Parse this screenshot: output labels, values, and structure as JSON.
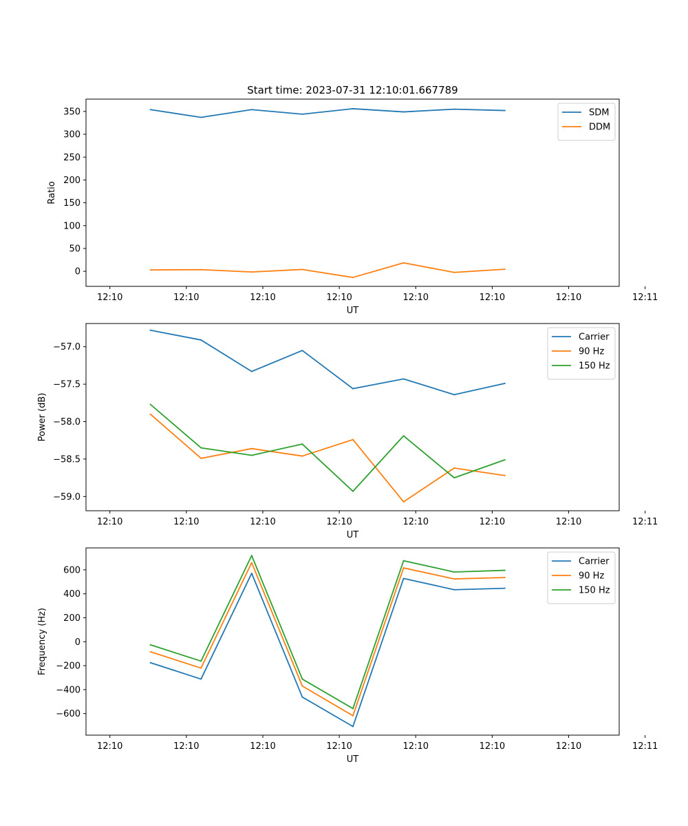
{
  "figure": {
    "title": "Start time: 2023-07-31 12:10:01.667789"
  },
  "chart_data": [
    {
      "type": "line",
      "title": "Start time: 2023-07-31 12:10:01.667789",
      "xlabel": "UT",
      "ylabel": "Ratio",
      "x": [
        1,
        2,
        3,
        4,
        5,
        6,
        7,
        8
      ],
      "xlim": [
        0,
        10
      ],
      "x_ticks": [
        0.2,
        1.71,
        3.22,
        4.73,
        6.24,
        7.75,
        9.26,
        10.77
      ],
      "x_tick_labels": [
        "12:10",
        "12:10",
        "12:10",
        "12:10",
        "12:10",
        "12:10",
        "12:10",
        "12:11"
      ],
      "ylim": [
        -33,
        377
      ],
      "y_ticks": [
        0,
        50,
        100,
        150,
        200,
        250,
        300,
        350
      ],
      "y_tick_labels": [
        "0",
        "50",
        "100",
        "150",
        "200",
        "250",
        "300",
        "350"
      ],
      "legend_position": "top-right",
      "series": [
        {
          "name": "SDM",
          "color": "#1f77b4",
          "values": [
            354,
            337,
            354,
            344,
            356,
            349,
            355,
            352
          ]
        },
        {
          "name": "DDM",
          "color": "#ff7f0e",
          "values": [
            3,
            3.5,
            -1.5,
            4,
            -13.5,
            18.5,
            -2.5,
            4.5
          ]
        }
      ]
    },
    {
      "type": "line",
      "title": "",
      "xlabel": "UT",
      "ylabel": "Power (dB)",
      "x": [
        1,
        2,
        3,
        4,
        5,
        6,
        7,
        8
      ],
      "xlim": [
        0,
        10
      ],
      "x_ticks": [
        0.2,
        1.71,
        3.22,
        4.73,
        6.24,
        7.75,
        9.26,
        10.77
      ],
      "x_tick_labels": [
        "12:10",
        "12:10",
        "12:10",
        "12:10",
        "12:10",
        "12:10",
        "12:10",
        "12:11"
      ],
      "ylim": [
        -59.19,
        -56.69
      ],
      "y_ticks": [
        -57.0,
        -57.5,
        -58.0,
        -58.5,
        -59.0
      ],
      "y_tick_labels": [
        "−57.0",
        "−57.5",
        "−58.0",
        "−58.5",
        "−59.0"
      ],
      "legend_position": "top-right",
      "series": [
        {
          "name": "Carrier",
          "color": "#1f77b4",
          "values": [
            -56.78,
            -56.91,
            -57.33,
            -57.05,
            -57.56,
            -57.43,
            -57.64,
            -57.49
          ]
        },
        {
          "name": "90 Hz",
          "color": "#ff7f0e",
          "values": [
            -57.9,
            -58.49,
            -58.36,
            -58.46,
            -58.24,
            -59.07,
            -58.62,
            -58.72
          ]
        },
        {
          "name": "150 Hz",
          "color": "#2ca02c",
          "values": [
            -57.77,
            -58.35,
            -58.45,
            -58.3,
            -58.93,
            -58.19,
            -58.75,
            -58.51
          ]
        }
      ]
    },
    {
      "type": "line",
      "title": "",
      "xlabel": "UT",
      "ylabel": "Frequency (Hz)",
      "x": [
        1,
        2,
        3,
        4,
        5,
        6,
        7,
        8
      ],
      "xlim": [
        0,
        10
      ],
      "x_ticks": [
        0.2,
        1.71,
        3.22,
        4.73,
        6.24,
        7.75,
        9.26,
        10.77
      ],
      "x_tick_labels": [
        "12:10",
        "12:10",
        "12:10",
        "12:10",
        "12:10",
        "12:10",
        "12:10",
        "12:11"
      ],
      "ylim": [
        -780,
        783
      ],
      "y_ticks": [
        600,
        400,
        200,
        0,
        -200,
        -400,
        -600
      ],
      "y_tick_labels": [
        "600",
        "400",
        "200",
        "0",
        "−200",
        "−400",
        "−600"
      ],
      "legend_position": "top-right",
      "series": [
        {
          "name": "Carrier",
          "color": "#1f77b4",
          "values": [
            -175,
            -312,
            571,
            -462,
            -708,
            528,
            434,
            446
          ]
        },
        {
          "name": "90 Hz",
          "color": "#ff7f0e",
          "values": [
            -84,
            -220,
            660,
            -370,
            -618,
            616,
            524,
            536
          ]
        },
        {
          "name": "150 Hz",
          "color": "#2ca02c",
          "values": [
            -26,
            -162,
            719,
            -312,
            -558,
            676,
            582,
            596
          ]
        }
      ]
    }
  ]
}
